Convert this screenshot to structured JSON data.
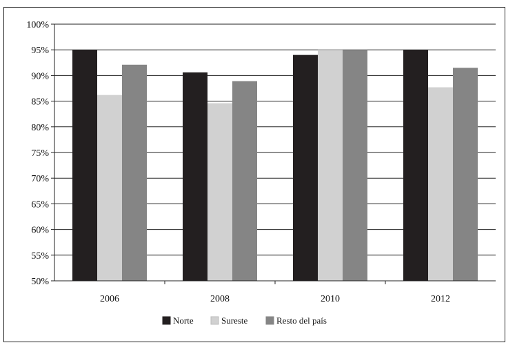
{
  "chart_data": {
    "type": "bar",
    "categories": [
      "2006",
      "2008",
      "2010",
      "2012"
    ],
    "series": [
      {
        "name": "Norte",
        "color": "#231f20",
        "values": [
          95,
          90.6,
          94,
          95
        ]
      },
      {
        "name": "Sureste",
        "color": "#d1d1d1",
        "values": [
          86.2,
          84.6,
          95,
          87.7
        ]
      },
      {
        "name": "Resto del país",
        "color": "#858585",
        "values": [
          92.1,
          88.9,
          95,
          91.5
        ]
      }
    ],
    "y_ticks": [
      "50%",
      "55%",
      "60%",
      "65%",
      "70%",
      "75%",
      "80%",
      "85%",
      "90%",
      "95%",
      "100%"
    ],
    "ylim": [
      50,
      100
    ],
    "ylabel": "",
    "xlabel": "",
    "title": "",
    "grid": true,
    "legend_position": "bottom-center"
  }
}
